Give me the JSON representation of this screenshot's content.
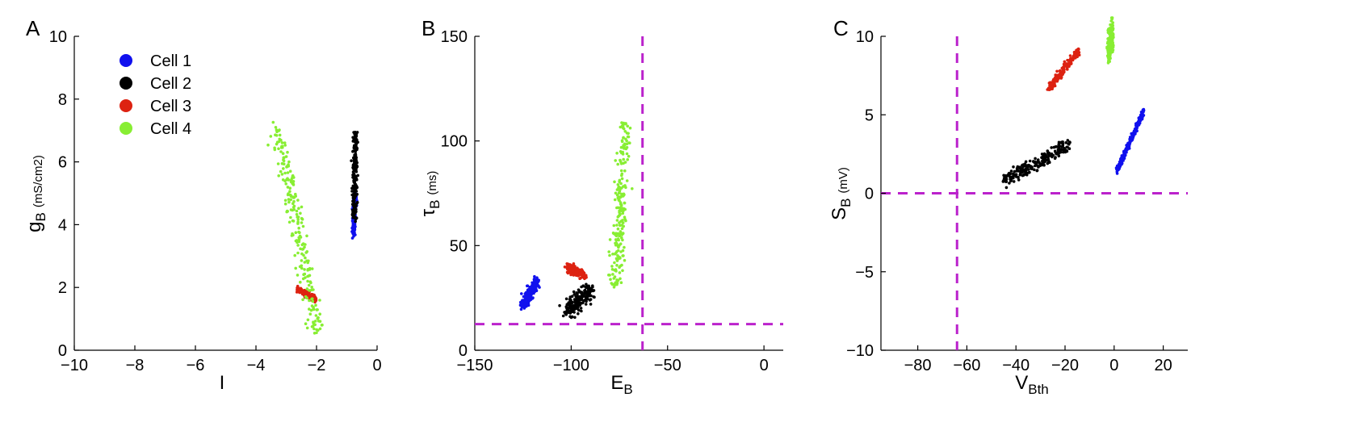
{
  "chart_data": [
    {
      "type": "scatter",
      "panel": "A",
      "xlabel": "I",
      "ylabel": "gB (mS/cm2)",
      "ylabel_main": "g",
      "ylabel_sub": "B",
      "ylabel_unit": "(mS/cm2)",
      "xlim": [
        -10,
        0
      ],
      "ylim": [
        0,
        10
      ],
      "xticks": [
        -10,
        -8,
        -6,
        -4,
        -2,
        0
      ],
      "xtick_labels": [
        "−10",
        "−8",
        "−6",
        "−4",
        "−2",
        "0"
      ],
      "yticks": [
        0,
        2,
        4,
        6,
        8,
        10
      ],
      "ytick_labels": [
        "0",
        "2",
        "4",
        "6",
        "8",
        "10"
      ],
      "legend": {
        "placement": "top-left",
        "entries": [
          {
            "label": "Cell 1",
            "color": "#1010ee"
          },
          {
            "label": "Cell 2",
            "color": "#000000"
          },
          {
            "label": "Cell 3",
            "color": "#dd2211"
          },
          {
            "label": "Cell 4",
            "color": "#88ee33"
          }
        ]
      },
      "series": [
        {
          "name": "Cell 1",
          "color": "#1010ee",
          "from": [
            -0.78,
            3.7
          ],
          "to": [
            -0.72,
            5.0
          ],
          "width": 0.06,
          "thickness": 0.12
        },
        {
          "name": "Cell 2",
          "color": "#000000",
          "from": [
            -0.75,
            4.2
          ],
          "to": [
            -0.72,
            6.95
          ],
          "width": 0.08,
          "thickness": 0.18
        },
        {
          "name": "Cell 3",
          "color": "#dd2211",
          "from": [
            -2.65,
            1.95
          ],
          "to": [
            -2.05,
            1.65
          ],
          "width": 0.05,
          "thickness": 0.1
        },
        {
          "name": "Cell 4",
          "color": "#88ee33",
          "from": [
            -3.3,
            7.05
          ],
          "to": [
            -1.95,
            0.55
          ],
          "width": 0.28,
          "thickness": 0.3
        }
      ]
    },
    {
      "type": "scatter",
      "panel": "B",
      "xlabel": "EB",
      "xlabel_main": "E",
      "xlabel_sub": "B",
      "ylabel": "τB (ms)",
      "ylabel_main": "τ",
      "ylabel_sub": "B",
      "ylabel_unit": "(ms)",
      "xlim": [
        -150,
        10
      ],
      "ylim": [
        0,
        150
      ],
      "xticks": [
        -150,
        -100,
        -50,
        0
      ],
      "xtick_labels": [
        "−150",
        "−100",
        "−50",
        "0"
      ],
      "yticks": [
        0,
        50,
        100,
        150
      ],
      "ytick_labels": [
        "0",
        "50",
        "100",
        "150"
      ],
      "reference_lines": [
        {
          "orientation": "vertical",
          "value": -63,
          "color": "#bb22cc",
          "style": "dashed"
        },
        {
          "orientation": "horizontal",
          "value": 12.5,
          "color": "#bb22cc",
          "style": "dashed"
        }
      ],
      "series": [
        {
          "name": "Cell 1",
          "color": "#1010ee",
          "from": [
            -125,
            21
          ],
          "to": [
            -118,
            33
          ],
          "width": 2.5,
          "thickness": 0.16
        },
        {
          "name": "Cell 2",
          "color": "#000000",
          "from": [
            -102,
            18
          ],
          "to": [
            -90,
            29
          ],
          "width": 3.5,
          "thickness": 0.3
        },
        {
          "name": "Cell 3",
          "color": "#dd2211",
          "from": [
            -102,
            40
          ],
          "to": [
            -93,
            36
          ],
          "width": 1.5,
          "thickness": 0.16
        },
        {
          "name": "Cell 4",
          "color": "#88ee33",
          "from": [
            -77,
            30
          ],
          "to": [
            -72,
            109
          ],
          "width": 3.5,
          "thickness": 0.16
        }
      ]
    },
    {
      "type": "scatter",
      "panel": "C",
      "xlabel": "VBth",
      "xlabel_main": "V",
      "xlabel_sub": "Bth",
      "ylabel": "SB (mV)",
      "ylabel_main": "S",
      "ylabel_sub": "B",
      "ylabel_unit": "(mV)",
      "xlim": [
        -95,
        30
      ],
      "ylim": [
        -10,
        10
      ],
      "xticks": [
        -80,
        -60,
        -40,
        -20,
        0,
        20
      ],
      "xtick_labels": [
        "−80",
        "−60",
        "−40",
        "−20",
        "0",
        "20"
      ],
      "yticks": [
        -10,
        -5,
        0,
        5,
        10
      ],
      "ytick_labels": [
        "−10",
        "−5",
        "0",
        "5",
        "10"
      ],
      "reference_lines": [
        {
          "orientation": "vertical",
          "value": -64,
          "color": "#bb22cc",
          "style": "dashed"
        },
        {
          "orientation": "horizontal",
          "value": 0,
          "color": "#bb22cc",
          "style": "dashed"
        }
      ],
      "series": [
        {
          "name": "Cell 1",
          "color": "#1010ee",
          "from": [
            1,
            1.4
          ],
          "to": [
            12,
            5.2
          ],
          "width": 0.35,
          "thickness": 0.14
        },
        {
          "name": "Cell 2",
          "color": "#000000",
          "from": [
            -45,
            0.8
          ],
          "to": [
            -18,
            3.1
          ],
          "width": 0.7,
          "thickness": 0.26
        },
        {
          "name": "Cell 3",
          "color": "#dd2211",
          "from": [
            -27,
            6.6
          ],
          "to": [
            -14,
            9.2
          ],
          "width": 0.4,
          "thickness": 0.14
        },
        {
          "name": "Cell 4",
          "color": "#88ee33",
          "from": [
            -2.5,
            9.1
          ],
          "to": [
            -0.5,
            9.95
          ],
          "width": 0.35,
          "thickness": 0.55
        }
      ]
    }
  ]
}
